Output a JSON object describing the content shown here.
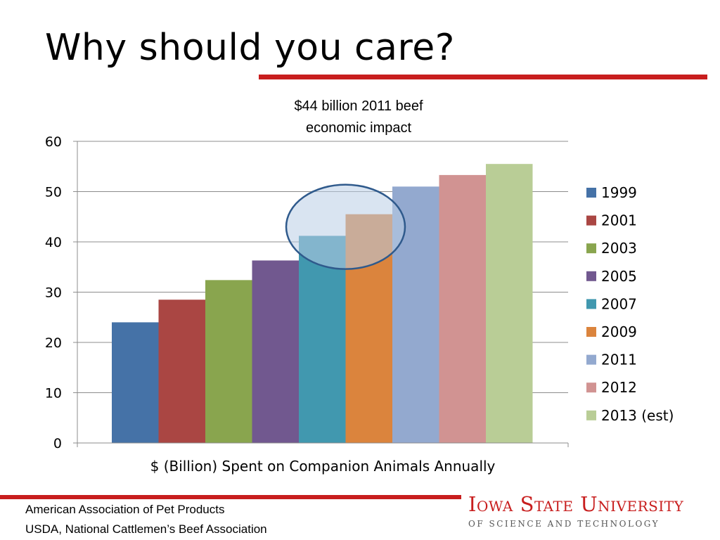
{
  "slide": {
    "title": "Why should you care?",
    "annotation_line1": "$44 billion 2011 beef",
    "annotation_line2": "economic impact"
  },
  "footer": {
    "line1": "American Association of Pet Products",
    "line2": "USDA, National Cattlemen’s Beef Association"
  },
  "logo": {
    "main": "Iowa State University",
    "sub": "OF SCIENCE AND TECHNOLOGY"
  },
  "colors": {
    "accent": "#c81e1e",
    "highlight_fill": "#b9cde6",
    "highlight_stroke": "#2f5a8c"
  },
  "chart_data": {
    "type": "bar",
    "title": "",
    "xlabel": "$ (Billion) Spent on Companion Animals Annually",
    "ylabel": "",
    "ylim": [
      0,
      60
    ],
    "yticks": [
      0,
      10,
      20,
      30,
      40,
      50,
      60
    ],
    "grid": true,
    "legend_position": "right",
    "series": [
      {
        "name": "1999",
        "value": 24.0,
        "color": "#4572a7"
      },
      {
        "name": "2001",
        "value": 28.5,
        "color": "#aa4643"
      },
      {
        "name": "2003",
        "value": 32.4,
        "color": "#89a54e"
      },
      {
        "name": "2005",
        "value": 36.3,
        "color": "#71588f"
      },
      {
        "name": "2007",
        "value": 41.2,
        "color": "#4198af"
      },
      {
        "name": "2009",
        "value": 45.5,
        "color": "#db843d"
      },
      {
        "name": "2011",
        "value": 51.0,
        "color": "#93a9cf"
      },
      {
        "name": "2012",
        "value": 53.3,
        "color": "#d19392"
      },
      {
        "name": "2013 (est)",
        "value": 55.5,
        "color": "#b9cd96"
      }
    ],
    "highlight": {
      "series": [
        "2007",
        "2009"
      ]
    }
  }
}
